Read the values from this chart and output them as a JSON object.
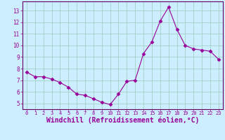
{
  "x": [
    0,
    1,
    2,
    3,
    4,
    5,
    6,
    7,
    8,
    9,
    10,
    11,
    12,
    13,
    14,
    15,
    16,
    17,
    18,
    19,
    20,
    21,
    22,
    23
  ],
  "y": [
    7.7,
    7.3,
    7.3,
    7.1,
    6.8,
    6.4,
    5.8,
    5.7,
    5.4,
    5.1,
    4.9,
    5.8,
    6.9,
    7.0,
    9.3,
    10.3,
    12.1,
    13.3,
    11.4,
    10.0,
    9.7,
    9.6,
    9.5,
    8.8
  ],
  "line_color": "#990099",
  "marker": "D",
  "markersize": 2.5,
  "linewidth": 0.8,
  "xlabel": "Windchill (Refroidissement éolien,°C)",
  "xlabel_fontsize": 7,
  "xtick_labels": [
    "0",
    "1",
    "2",
    "3",
    "4",
    "5",
    "6",
    "7",
    "8",
    "9",
    "10",
    "11",
    "12",
    "13",
    "14",
    "15",
    "16",
    "17",
    "18",
    "19",
    "20",
    "21",
    "22",
    "23"
  ],
  "ytick_labels": [
    "5",
    "6",
    "7",
    "8",
    "9",
    "10",
    "11",
    "12",
    "13"
  ],
  "ylim": [
    4.5,
    13.8
  ],
  "xlim": [
    -0.5,
    23.5
  ],
  "bg_color": "#cceeff",
  "grid_color": "#99ccbb",
  "tick_color": "#990099",
  "label_color": "#990099",
  "spine_color": "#660066",
  "xtick_fontsize": 5.0,
  "ytick_fontsize": 5.5
}
